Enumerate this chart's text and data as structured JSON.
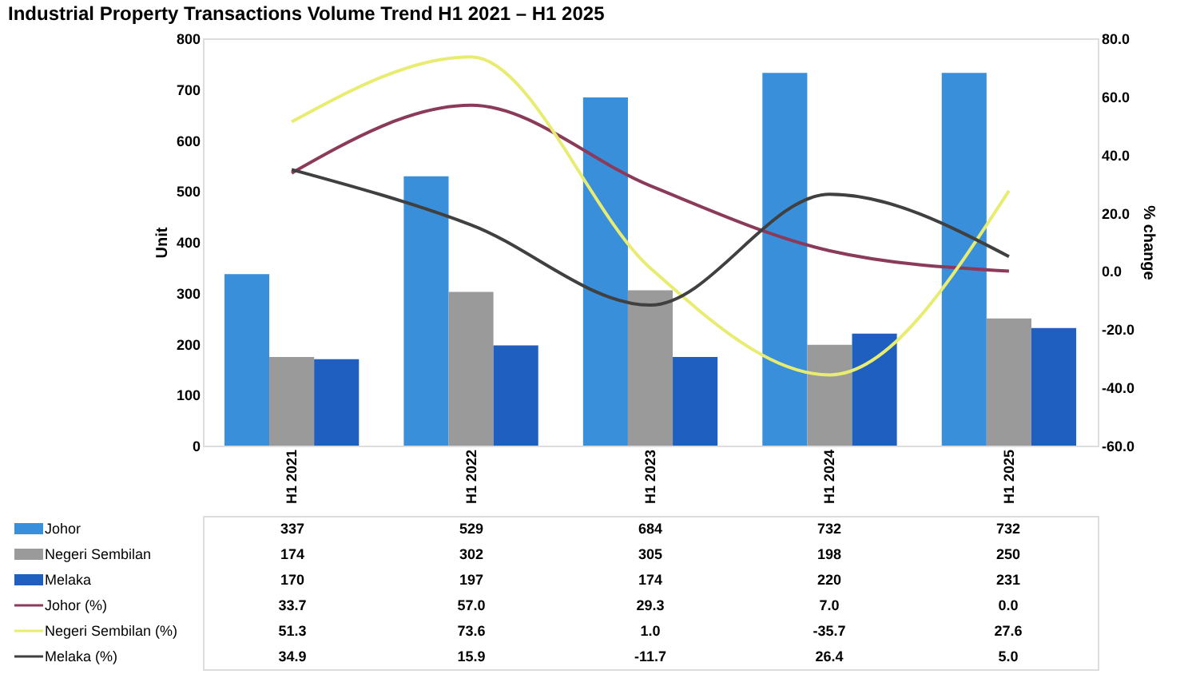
{
  "chart_data": {
    "type": "bar",
    "title": "Industrial Property Transactions Volume Trend H1 2021 – H1 2025",
    "categories": [
      "H1 2021",
      "H1 2022",
      "H1 2023",
      "H1 2024",
      "H1 2025"
    ],
    "ylabel": "Unit",
    "y2label": "% change",
    "ylim": [
      0,
      800
    ],
    "yticks": [
      0,
      100,
      200,
      300,
      400,
      500,
      600,
      700,
      800
    ],
    "y2lim": [
      -60,
      80
    ],
    "y2ticks": [
      {
        "value": -60,
        "label": "-60.0"
      },
      {
        "value": -40,
        "label": "-40.0"
      },
      {
        "value": -20,
        "label": "-20.0"
      },
      {
        "value": 0,
        "label": "0.0"
      },
      {
        "value": 20,
        "label": "20.0"
      },
      {
        "value": 40,
        "label": "40.0"
      },
      {
        "value": 60,
        "label": "60.0"
      },
      {
        "value": 80,
        "label": "80.0"
      }
    ],
    "legend": "bottom",
    "grid": false,
    "series": [
      {
        "name": "Johor",
        "color": "#3a8fdb",
        "values": [
          337,
          529,
          684,
          732,
          732
        ],
        "value_labels": [
          "337",
          "529",
          "684",
          "732",
          "732"
        ]
      },
      {
        "name": "Negeri Sembilan",
        "color": "#9a9a9a",
        "values": [
          174,
          302,
          305,
          198,
          250
        ],
        "value_labels": [
          "174",
          "302",
          "305",
          "198",
          "250"
        ]
      },
      {
        "name": "Melaka",
        "color": "#1f5fbf",
        "values": [
          170,
          197,
          174,
          220,
          231
        ],
        "value_labels": [
          "170",
          "197",
          "174",
          "220",
          "231"
        ]
      },
      {
        "name": "Johor (%)",
        "type": "line",
        "axis": "y2",
        "color": "#8b3a5a",
        "values": [
          33.7,
          57.0,
          29.3,
          7.0,
          0.0
        ],
        "value_labels": [
          "33.7",
          "57.0",
          "29.3",
          "7.0",
          "0.0"
        ]
      },
      {
        "name": "Negeri Sembilan (%)",
        "type": "line",
        "axis": "y2",
        "color": "#e8ec70",
        "values": [
          51.3,
          73.6,
          1.0,
          -35.7,
          27.6
        ],
        "value_labels": [
          "51.3",
          "73.6",
          "1.0",
          "-35.7",
          "27.6"
        ]
      },
      {
        "name": "Melaka (%)",
        "type": "line",
        "axis": "y2",
        "color": "#404040",
        "values": [
          34.9,
          15.9,
          -11.7,
          26.4,
          5.0
        ],
        "value_labels": [
          "34.9",
          "15.9",
          "-11.7",
          "26.4",
          "5.0"
        ]
      }
    ]
  }
}
